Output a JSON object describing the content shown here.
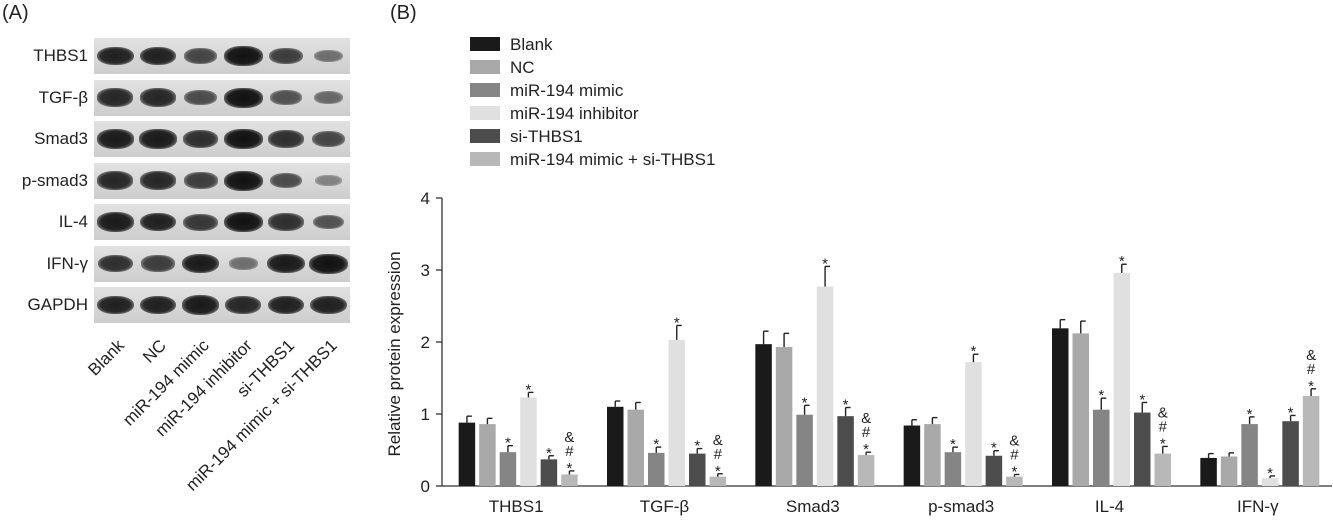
{
  "panel_a": {
    "label": "(A)",
    "proteins": [
      "THBS1",
      "TGF-β",
      "Smad3",
      "p-smad3",
      "IL-4",
      "IFN-γ",
      "GAPDH"
    ],
    "lanes": [
      "Blank",
      "NC",
      "miR-194 mimic",
      "miR-194 inhibitor",
      "si-THBS1",
      "miR-194 mimic + si-THBS1"
    ],
    "band_intensity": [
      [
        0.9,
        0.9,
        0.65,
        1.0,
        0.7,
        0.35
      ],
      [
        0.85,
        0.85,
        0.6,
        1.0,
        0.55,
        0.4
      ],
      [
        0.95,
        0.95,
        0.8,
        1.0,
        0.8,
        0.65
      ],
      [
        0.85,
        0.85,
        0.7,
        1.0,
        0.6,
        0.2
      ],
      [
        0.95,
        0.9,
        0.75,
        1.0,
        0.8,
        0.55
      ],
      [
        0.8,
        0.7,
        0.95,
        0.35,
        0.95,
        1.0
      ],
      [
        0.9,
        0.9,
        0.95,
        0.85,
        0.9,
        0.9
      ]
    ]
  },
  "chart_data": {
    "label": "(B)",
    "type": "bar",
    "categories": [
      "THBS1",
      "TGF-β",
      "Smad3",
      "p-smad3",
      "IL-4",
      "IFN-γ"
    ],
    "ylabel": "Relative protein expression",
    "xlabel": "",
    "ylim": [
      0,
      4
    ],
    "yticks": [
      "0",
      "1",
      "2",
      "3",
      "4"
    ],
    "legend_position": "top-left",
    "series": [
      {
        "name": "Blank",
        "color": "#1a1a1a",
        "values": [
          0.88,
          1.1,
          1.97,
          0.84,
          2.19,
          0.39
        ],
        "errors": [
          0.09,
          0.08,
          0.18,
          0.08,
          0.12,
          0.06
        ],
        "sig": [
          "",
          "",
          "",
          "",
          "",
          ""
        ]
      },
      {
        "name": "NC",
        "color": "#a9a9a9",
        "values": [
          0.86,
          1.06,
          1.93,
          0.86,
          2.12,
          0.41
        ],
        "errors": [
          0.08,
          0.1,
          0.19,
          0.09,
          0.17,
          0.05
        ],
        "sig": [
          "",
          "",
          "",
          "",
          "",
          ""
        ]
      },
      {
        "name": "miR-194 mimic",
        "color": "#858585",
        "values": [
          0.47,
          0.46,
          0.99,
          0.47,
          1.06,
          0.86
        ],
        "errors": [
          0.09,
          0.08,
          0.13,
          0.07,
          0.16,
          0.1
        ],
        "sig": [
          "*",
          "*",
          "*",
          "*",
          "*",
          "*"
        ]
      },
      {
        "name": "miR-194 inhibitor",
        "color": "#e0e0e0",
        "values": [
          1.23,
          2.03,
          2.77,
          1.72,
          2.96,
          0.11
        ],
        "errors": [
          0.07,
          0.2,
          0.28,
          0.11,
          0.12,
          0.03
        ],
        "sig": [
          "*",
          "*",
          "*",
          "*",
          "*",
          "*"
        ]
      },
      {
        "name": "si-THBS1",
        "color": "#4d4d4d",
        "values": [
          0.37,
          0.45,
          0.97,
          0.42,
          1.02,
          0.9
        ],
        "errors": [
          0.05,
          0.07,
          0.12,
          0.07,
          0.14,
          0.08
        ],
        "sig": [
          "*",
          "*",
          "*",
          "*",
          "*",
          "*"
        ]
      },
      {
        "name": "miR-194 mimic + si-THBS1",
        "color": "#b8b8b8",
        "values": [
          0.16,
          0.13,
          0.43,
          0.13,
          0.45,
          1.25
        ],
        "errors": [
          0.05,
          0.04,
          0.04,
          0.03,
          0.1,
          0.1
        ],
        "sig": [
          "&#*",
          "&#*",
          "&#*",
          "&#*",
          "&#*",
          "&#*"
        ]
      }
    ]
  }
}
